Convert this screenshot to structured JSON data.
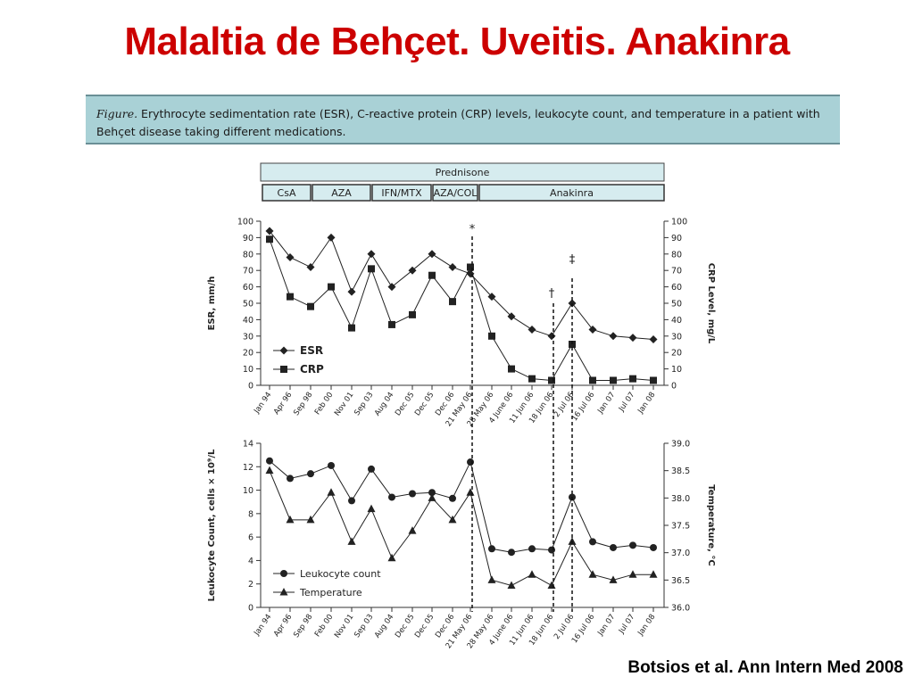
{
  "slide": {
    "title": "Malaltia de Behçet. Uveitis. Anakinra",
    "caption_label": "Figure.",
    "caption_body": " Erythrocyte sedimentation rate (ESR), C-reactive protein (CRP) levels, leukocyte count, and temperature in a patient with Behçet disease taking different medications.",
    "citation": "Botsios et al. Ann Intern Med 2008"
  },
  "medications": {
    "top_bar": "Prednisone",
    "segments": [
      "CsA",
      "AZA",
      "IFN/MTX",
      "AZA/COL",
      "Anakinra"
    ]
  },
  "markers": {
    "asterisk": "*",
    "dagger": "†",
    "double_dagger": "‡"
  },
  "colors": {
    "title": "#cc0000",
    "caption_bg": "#a9d1d6",
    "med_bar_bg": "#d6ecef"
  },
  "chart_data": [
    {
      "type": "line",
      "title": "",
      "categories": [
        "Jan 94",
        "Apr 96",
        "Sep 98",
        "Feb 00",
        "Nov 01",
        "Sep 03",
        "Aug 04",
        "Dec 05",
        "Dec 05",
        "Dec 06",
        "21 May 06",
        "28 May 06",
        "4 June 06",
        "11 Jun 06",
        "18 Jun 06",
        "2 Jul 06",
        "16 Jul 06",
        "Jan 07",
        "Jul 07",
        "Jan 08"
      ],
      "ylabel": "ESR, mm/h",
      "y2label": "CRP Level, mg/L",
      "ylim": [
        0,
        100
      ],
      "y2lim": [
        0,
        100
      ],
      "yticks": [
        "0",
        "10",
        "20",
        "30",
        "40",
        "50",
        "60",
        "70",
        "80",
        "90",
        "100"
      ],
      "series": [
        {
          "name": "ESR",
          "axis": "left",
          "marker": "diamond",
          "values": [
            94,
            78,
            72,
            90,
            57,
            80,
            60,
            70,
            80,
            72,
            68,
            54,
            42,
            34,
            30,
            50,
            34,
            30,
            29,
            28
          ]
        },
        {
          "name": "CRP",
          "axis": "right",
          "marker": "square",
          "values": [
            89,
            54,
            48,
            60,
            35,
            71,
            37,
            43,
            67,
            51,
            72,
            30,
            10,
            4,
            3,
            25,
            3,
            3,
            4,
            3
          ]
        }
      ],
      "legend": "bottom-left"
    },
    {
      "type": "line",
      "title": "",
      "categories": [
        "Jan 94",
        "Apr 96",
        "Sep 98",
        "Feb 00",
        "Nov 01",
        "Sep 03",
        "Aug 04",
        "Dec 05",
        "Dec 05",
        "Dec 06",
        "21 May 06",
        "28 May 06",
        "4 June 06",
        "11 Jun 06",
        "18 Jun 06",
        "2 Jul 06",
        "16 Jul 06",
        "Jan 07",
        "Jul 07",
        "Jan 08"
      ],
      "ylabel": "Leukocyte Count, cells × 10⁹/L",
      "y2label": "Temperature, °C",
      "ylim": [
        0,
        14
      ],
      "y2lim": [
        36.0,
        39.0
      ],
      "yticks": [
        "0",
        "2",
        "4",
        "6",
        "8",
        "10",
        "12",
        "14"
      ],
      "y2ticks": [
        "36.0",
        "36.5",
        "37.0",
        "37.5",
        "38.0",
        "38.5",
        "39.0"
      ],
      "series": [
        {
          "name": "Leukocyte count",
          "axis": "left",
          "marker": "circle",
          "values": [
            12.5,
            11,
            11.4,
            12.1,
            9.1,
            11.8,
            9.4,
            9.7,
            9.8,
            9.3,
            12.4,
            5,
            4.7,
            5,
            4.9,
            9.4,
            5.6,
            5.1,
            5.3,
            5.1
          ]
        },
        {
          "name": "Temperature",
          "axis": "right",
          "marker": "triangle",
          "values": [
            38.5,
            37.6,
            37.6,
            38.1,
            37.2,
            37.8,
            36.9,
            37.4,
            38.0,
            37.6,
            38.1,
            36.5,
            36.4,
            36.6,
            36.4,
            37.2,
            36.6,
            36.5,
            36.6,
            36.6
          ]
        }
      ],
      "legend": "bottom-left"
    }
  ]
}
